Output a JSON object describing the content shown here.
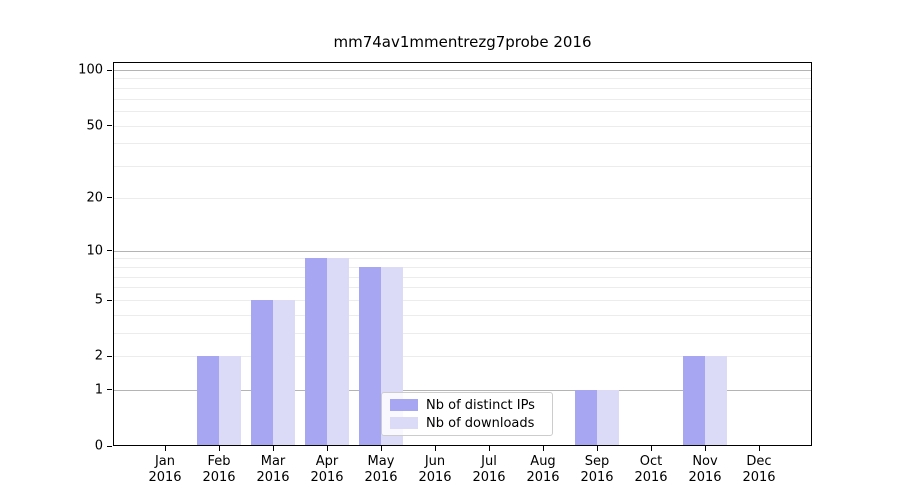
{
  "title": "mm74av1mmentrezg7probe 2016",
  "chart_data": {
    "type": "bar",
    "title": "mm74av1mmentrezg7probe 2016",
    "categories": [
      "Jan",
      "Feb",
      "Mar",
      "Apr",
      "May",
      "Jun",
      "Jul",
      "Aug",
      "Sep",
      "Oct",
      "Nov",
      "Dec"
    ],
    "category_year": "2016",
    "series": [
      {
        "name": "Nb of distinct IPs",
        "color": "#a6a6f2",
        "values": [
          0,
          2,
          5,
          9,
          8,
          0,
          0,
          0,
          1,
          0,
          2,
          0
        ]
      },
      {
        "name": "Nb of downloads",
        "color": "#dbdbf8",
        "values": [
          0,
          2,
          5,
          9,
          8,
          0,
          0,
          0,
          1,
          0,
          2,
          0
        ]
      }
    ],
    "xlabel": "",
    "ylabel": "",
    "y_ticks": [
      0,
      1,
      2,
      5,
      10,
      20,
      50,
      100
    ],
    "ylim": [
      0,
      100
    ],
    "y_scale": "log1p",
    "grid": {
      "major": [
        1,
        10,
        100
      ],
      "minor": [
        2,
        3,
        4,
        5,
        6,
        7,
        8,
        9,
        20,
        30,
        40,
        50,
        60,
        70,
        80,
        90
      ],
      "major_color": "#b4b4b4",
      "minor_color": "#ececec"
    },
    "legend_position": "lower center"
  },
  "legend": {
    "items": [
      {
        "label": "Nb of distinct IPs",
        "color": "#a6a6f2"
      },
      {
        "label": "Nb of downloads",
        "color": "#dbdbf8"
      }
    ]
  }
}
